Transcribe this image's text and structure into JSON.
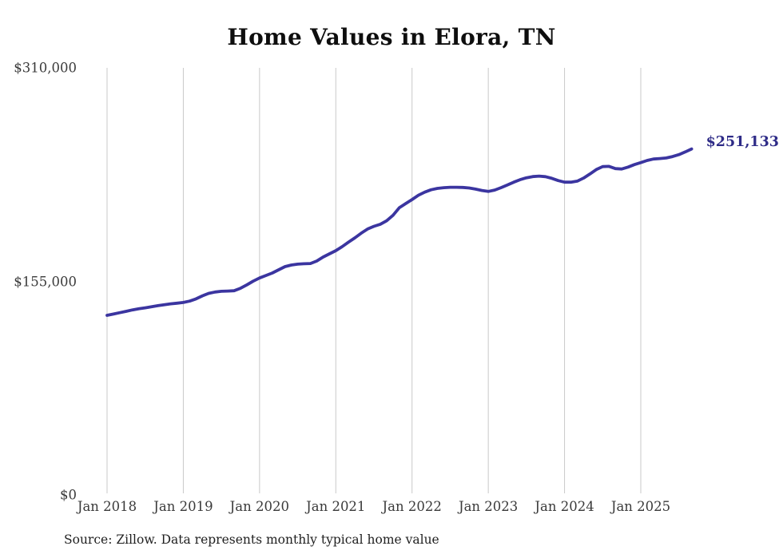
{
  "title": "Home Values in Elora, TN",
  "source_note": "Source: Zillow. Data represents monthly typical home value",
  "end_label": "$251,133",
  "colors": {
    "line": "#3b35a0",
    "end_label": "#2e2b87",
    "grid": "#c9c9c9",
    "title": "#0e0e0e",
    "axis_text": "#3a3a3a",
    "background": "#ffffff"
  },
  "chart_data": {
    "type": "line",
    "title": "Home Values in Elora, TN",
    "xlabel": "",
    "ylabel": "",
    "ylim": [
      0,
      310000
    ],
    "grid": "vertical-only",
    "legend": "none",
    "x_ticks": [
      "Jan 2018",
      "Jan 2019",
      "Jan 2020",
      "Jan 2021",
      "Jan 2022",
      "Jan 2023",
      "Jan 2024",
      "Jan 2025"
    ],
    "y_ticks": [
      {
        "label": "$0",
        "value": 0
      },
      {
        "label": "$155,000",
        "value": 155000
      },
      {
        "label": "$310,000",
        "value": 310000
      }
    ],
    "series": [
      {
        "name": "Monthly typical home value",
        "start": "Jan 2018",
        "end": "Sep 2025",
        "interval": "monthly",
        "final_value_label": "$251,133",
        "values": [
          130400,
          131300,
          132300,
          133300,
          134300,
          135100,
          135800,
          136600,
          137400,
          138100,
          138700,
          139200,
          139700,
          140700,
          142300,
          144500,
          146300,
          147300,
          147800,
          148000,
          148200,
          150000,
          152500,
          155200,
          157500,
          159300,
          161100,
          163400,
          165700,
          166900,
          167500,
          167800,
          168000,
          169800,
          172700,
          175000,
          177300,
          180200,
          183500,
          186600,
          190000,
          193000,
          195000,
          196500,
          199000,
          203000,
          208500,
          211500,
          214400,
          217500,
          219800,
          221500,
          222500,
          223000,
          223300,
          223300,
          223200,
          222800,
          222000,
          221000,
          220300,
          221300,
          223000,
          225000,
          227000,
          228800,
          230200,
          231100,
          231400,
          231000,
          229800,
          228200,
          227000,
          227000,
          227800,
          230000,
          233000,
          236200,
          238300,
          238500,
          236900,
          236600,
          238000,
          239800,
          241200,
          242800,
          243800,
          244200,
          244600,
          245600,
          247000,
          249000,
          251133
        ]
      }
    ]
  }
}
